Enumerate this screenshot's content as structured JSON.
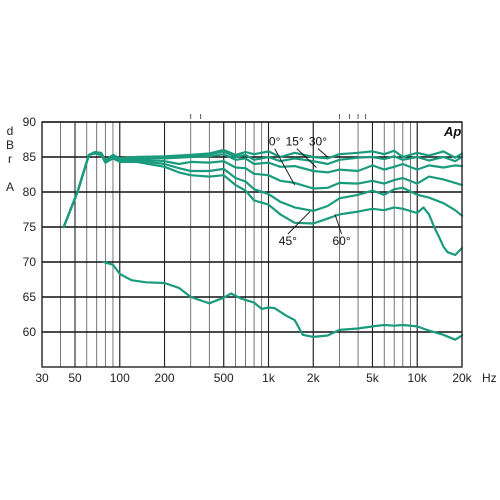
{
  "chart_data": {
    "type": "line",
    "logo": "Ap",
    "xscale": "log",
    "xlim": [
      30,
      20000
    ],
    "ylim": [
      55,
      90
    ],
    "grid": true,
    "ylabel_letters": [
      "d",
      "B",
      "r",
      "",
      "A"
    ],
    "x_unit": "Hz",
    "x_ticks": [
      {
        "value": 30,
        "label": "30"
      },
      {
        "value": 50,
        "label": "50"
      },
      {
        "value": 100,
        "label": "100"
      },
      {
        "value": 200,
        "label": "200"
      },
      {
        "value": 500,
        "label": "500"
      },
      {
        "value": 1000,
        "label": "1k"
      },
      {
        "value": 2000,
        "label": "2k"
      },
      {
        "value": 5000,
        "label": "5k"
      },
      {
        "value": 10000,
        "label": "10k"
      },
      {
        "value": 20000,
        "label": "20k"
      }
    ],
    "y_ticks": [
      {
        "value": 90,
        "label": "90"
      },
      {
        "value": 85,
        "label": "85"
      },
      {
        "value": 80,
        "label": "80"
      },
      {
        "value": 75,
        "label": "75"
      },
      {
        "value": 70,
        "label": "70"
      },
      {
        "value": 65,
        "label": "65"
      },
      {
        "value": 60,
        "label": "60"
      }
    ],
    "color": "#1a9b7e",
    "annotations": [
      {
        "label": "0°",
        "x": 1100,
        "y": 87.2
      },
      {
        "label": "15°",
        "x": 1500,
        "y": 87.2
      },
      {
        "label": "30°",
        "x": 2150,
        "y": 87.2
      },
      {
        "label": "45°",
        "x": 1350,
        "y": 73.0
      },
      {
        "label": "60°",
        "x": 3100,
        "y": 73.0
      }
    ],
    "series": [
      {
        "x": [
          42,
          52,
          62,
          68,
          75,
          80,
          90,
          100,
          130,
          200,
          300,
          400,
          500,
          600,
          700,
          800,
          1000,
          1200,
          1500,
          2000,
          2500,
          3000,
          4000,
          5000,
          6000,
          7000,
          8000,
          10000,
          12000,
          15000,
          18000,
          20000
        ],
        "y": [
          75,
          80,
          85.3,
          85.7,
          85.6,
          84.5,
          85.3,
          84.8,
          85.0,
          85.1,
          85.3,
          85.5,
          86.0,
          85.3,
          85.7,
          85.4,
          85.8,
          85.0,
          85.6,
          85.0,
          84.8,
          85.4,
          85.6,
          85.8,
          85.4,
          85.9,
          85.0,
          85.6,
          85.2,
          85.8,
          84.9,
          85.5
        ]
      },
      {
        "x": [
          42,
          52,
          62,
          68,
          75,
          80,
          90,
          100,
          130,
          200,
          300,
          400,
          500,
          600,
          700,
          800,
          1000,
          1200,
          1500,
          2000,
          2500,
          3000,
          4000,
          5000,
          6000,
          7000,
          8000,
          10000,
          12000,
          15000,
          18000,
          20000
        ],
        "y": [
          75,
          80,
          85.3,
          85.7,
          85.5,
          84.5,
          85.2,
          84.8,
          85.0,
          85.0,
          85.2,
          85.4,
          85.8,
          85.0,
          85.3,
          84.6,
          85.0,
          84.4,
          84.8,
          84.4,
          84.0,
          84.6,
          84.9,
          85.0,
          84.7,
          85.1,
          84.6,
          85.0,
          84.5,
          85.0,
          84.4,
          85.0
        ]
      },
      {
        "x": [
          42,
          52,
          62,
          68,
          75,
          80,
          90,
          100,
          130,
          200,
          300,
          400,
          500,
          600,
          700,
          800,
          1000,
          1200,
          1500,
          2000,
          2500,
          3000,
          4000,
          5000,
          6000,
          7000,
          8000,
          10000,
          12000,
          15000,
          18000,
          20000
        ],
        "y": [
          75,
          80,
          85.3,
          85.6,
          85.5,
          84.4,
          85.1,
          84.6,
          84.9,
          84.8,
          85.0,
          85.1,
          85.4,
          84.6,
          84.8,
          84.0,
          84.2,
          83.6,
          83.7,
          83.0,
          82.8,
          83.2,
          83.0,
          83.8,
          83.2,
          83.6,
          84.0,
          83.2,
          83.8,
          83.5,
          83.8,
          83.7
        ]
      },
      {
        "x": [
          42,
          52,
          62,
          68,
          75,
          80,
          90,
          100,
          130,
          200,
          250,
          300,
          400,
          500,
          600,
          700,
          800,
          1000,
          1200,
          1500,
          2000,
          2500,
          3000,
          4000,
          5000,
          6000,
          7000,
          8000,
          10000,
          12000,
          15000,
          18000,
          20000
        ],
        "y": [
          75,
          80,
          85.3,
          85.6,
          85.4,
          84.3,
          85.0,
          84.5,
          84.7,
          84.4,
          84.0,
          84.3,
          84.2,
          84.4,
          83.5,
          83.4,
          82.6,
          82.4,
          81.6,
          81.3,
          80.5,
          80.6,
          81.3,
          81.2,
          81.6,
          81.2,
          81.7,
          82.0,
          81.2,
          82.2,
          81.8,
          81.3,
          81.0
        ]
      },
      {
        "x": [
          42,
          52,
          62,
          68,
          75,
          80,
          90,
          100,
          130,
          200,
          250,
          300,
          400,
          500,
          600,
          700,
          800,
          1000,
          1200,
          1500,
          2000,
          2500,
          3000,
          4000,
          5000,
          6000,
          7000,
          8000,
          10000,
          12000,
          15000,
          18000,
          20000
        ],
        "y": [
          75,
          80,
          85.3,
          85.6,
          85.4,
          84.2,
          84.9,
          84.4,
          84.5,
          84.0,
          83.4,
          83.0,
          83.0,
          83.3,
          82.0,
          81.5,
          80.4,
          79.7,
          78.6,
          77.8,
          77.3,
          78.0,
          79.1,
          79.6,
          80.2,
          79.6,
          80.4,
          80.6,
          79.6,
          79.2,
          78.4,
          77.4,
          76.6
        ]
      },
      {
        "x": [
          42,
          52,
          62,
          68,
          75,
          80,
          90,
          100,
          130,
          200,
          250,
          300,
          400,
          500,
          600,
          700,
          800,
          1000,
          1200,
          1500,
          2000,
          2500,
          3000,
          4000,
          5000,
          6000,
          7000,
          8000,
          10000,
          11000,
          12000,
          13000,
          14000,
          15000,
          16000,
          18000,
          20000
        ],
        "y": [
          75,
          80,
          85.3,
          85.5,
          85.3,
          84.2,
          84.8,
          84.3,
          84.3,
          83.6,
          82.8,
          82.4,
          82.2,
          82.4,
          81.0,
          80.2,
          78.8,
          78.2,
          76.8,
          75.6,
          75.5,
          76.2,
          76.8,
          77.2,
          77.6,
          77.4,
          77.8,
          77.6,
          77.0,
          77.8,
          76.8,
          75.0,
          73.6,
          72.2,
          71.4,
          71.0,
          72.0
        ]
      },
      {
        "x": [
          78,
          90,
          100,
          120,
          150,
          200,
          250,
          300,
          400,
          500,
          560,
          650,
          800,
          900,
          1000,
          1100,
          1300,
          1500,
          1700,
          2000,
          2500,
          3000,
          4000,
          5000,
          6000,
          7000,
          8000,
          10000,
          12000,
          15000,
          18000,
          20000
        ],
        "y": [
          70,
          69.6,
          68.3,
          67.4,
          67.1,
          67.0,
          66.3,
          65.0,
          64.1,
          64.9,
          65.5,
          64.8,
          64.2,
          63.3,
          63.5,
          63.4,
          62.4,
          61.7,
          59.6,
          59.3,
          59.5,
          60.3,
          60.5,
          60.8,
          61.0,
          60.9,
          61.0,
          60.8,
          60.2,
          59.6,
          58.9,
          59.5
        ]
      }
    ]
  }
}
